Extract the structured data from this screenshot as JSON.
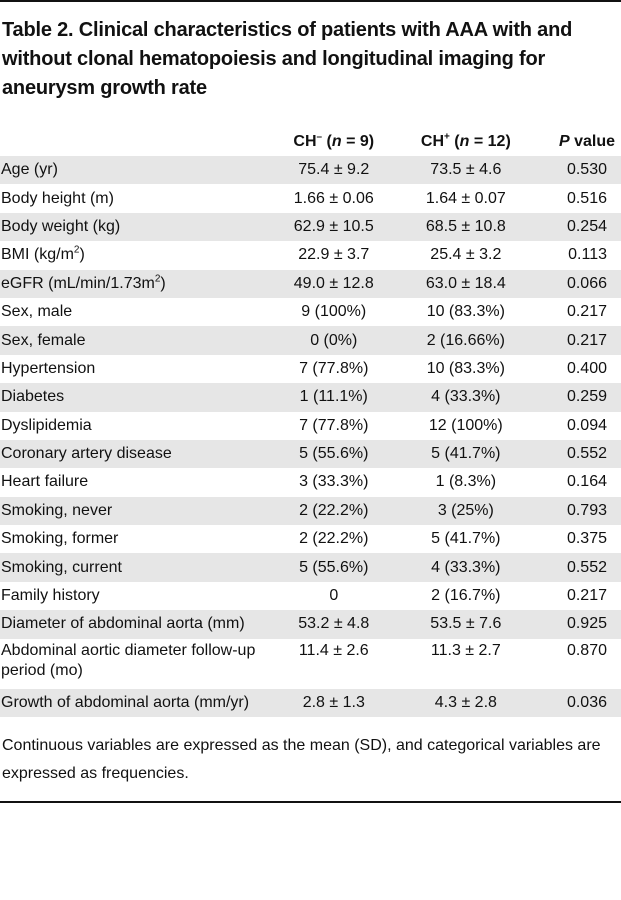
{
  "title": "Table 2. Clinical characteristics of patients with AAA with and without clonal hematopoiesis and longitudinal imaging for aneurysm growth rate",
  "header": {
    "ch_minus_prefix": "CH",
    "ch_minus_sup": "–",
    "ch_minus_open": " (",
    "n_label": "n",
    "ch_minus_count": " = 9)",
    "ch_plus_prefix": "CH",
    "ch_plus_sup": "+",
    "ch_plus_open": " (",
    "ch_plus_count": " = 12)",
    "p_label": "P",
    "p_suffix": " value"
  },
  "rows": [
    {
      "label": "Age (yr)",
      "ch_minus": "75.4 ± 9.2",
      "ch_plus": "73.5 ± 4.6",
      "p": "0.530"
    },
    {
      "label": "Body height (m)",
      "ch_minus": "1.66 ± 0.06",
      "ch_plus": "1.64 ± 0.07",
      "p": "0.516"
    },
    {
      "label": "Body weight (kg)",
      "ch_minus": "62.9 ± 10.5",
      "ch_plus": "68.5 ± 10.8",
      "p": "0.254"
    },
    {
      "label_prefix": "BMI (kg/m",
      "label_sup": "2",
      "label_suffix": ")",
      "ch_minus": "22.9 ± 3.7",
      "ch_plus": "25.4 ± 3.2",
      "p": "0.113"
    },
    {
      "label_prefix": "eGFR (mL/min/1.73m",
      "label_sup": "2",
      "label_suffix": ")",
      "ch_minus": "49.0 ± 12.8",
      "ch_plus": "63.0 ± 18.4",
      "p": "0.066"
    },
    {
      "label": "Sex, male",
      "ch_minus": "9 (100%)",
      "ch_plus": "10 (83.3%)",
      "p": "0.217"
    },
    {
      "label": "Sex, female",
      "ch_minus": "0 (0%)",
      "ch_plus": "2 (16.66%)",
      "p": "0.217"
    },
    {
      "label": "Hypertension",
      "ch_minus": "7 (77.8%)",
      "ch_plus": "10 (83.3%)",
      "p": "0.400"
    },
    {
      "label": "Diabetes",
      "ch_minus": "1 (11.1%)",
      "ch_plus": "4 (33.3%)",
      "p": "0.259"
    },
    {
      "label": "Dyslipidemia",
      "ch_minus": "7 (77.8%)",
      "ch_plus": "12 (100%)",
      "p": "0.094"
    },
    {
      "label": "Coronary artery disease",
      "ch_minus": "5 (55.6%)",
      "ch_plus": "5 (41.7%)",
      "p": "0.552"
    },
    {
      "label": "Heart failure",
      "ch_minus": "3 (33.3%)",
      "ch_plus": "1 (8.3%)",
      "p": "0.164"
    },
    {
      "label": "Smoking, never",
      "ch_minus": "2 (22.2%)",
      "ch_plus": "3 (25%)",
      "p": "0.793"
    },
    {
      "label": "Smoking, former",
      "ch_minus": "2 (22.2%)",
      "ch_plus": "5 (41.7%)",
      "p": "0.375"
    },
    {
      "label": "Smoking, current",
      "ch_minus": "5 (55.6%)",
      "ch_plus": "4 (33.3%)",
      "p": "0.552"
    },
    {
      "label": "Family history",
      "ch_minus": "0",
      "ch_plus": "2 (16.7%)",
      "p": "0.217"
    },
    {
      "label": "Diameter of abdominal aorta (mm)",
      "ch_minus": "53.2 ± 4.8",
      "ch_plus": "53.5 ± 7.6",
      "p": "0.925"
    },
    {
      "label": "Abdominal aortic diameter follow-up period (mo)",
      "ch_minus": "11.4 ± 2.6",
      "ch_plus": "11.3 ± 2.7",
      "p": "0.870"
    },
    {
      "label": "Growth of abdominal aorta (mm/yr)",
      "ch_minus": "2.8 ± 1.3",
      "ch_plus": "4.3 ± 2.8",
      "p": "0.036"
    }
  ],
  "footnote": "Continuous variables are expressed as the mean (SD), and categorical variables are expressed as frequencies."
}
